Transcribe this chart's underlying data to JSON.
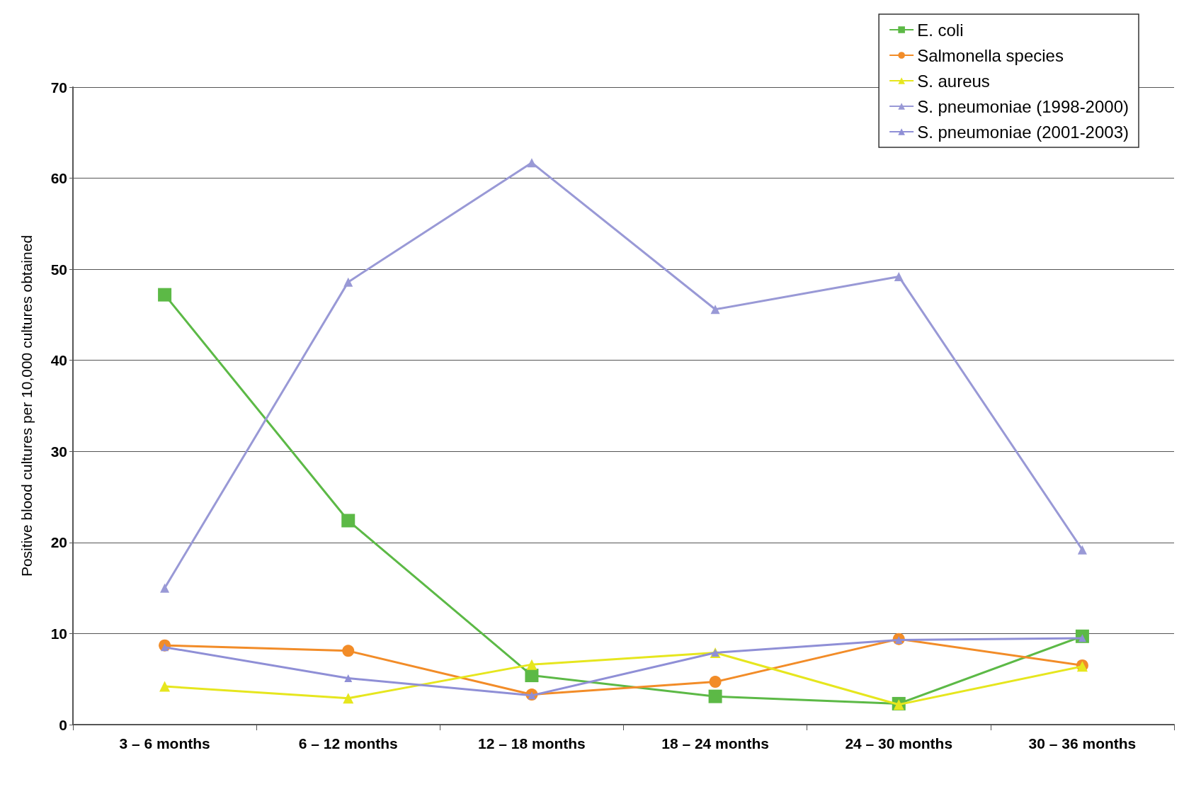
{
  "chart_data": {
    "type": "line",
    "ylabel": "Positive blood cultures per 10,000 cultures obtained",
    "categories": [
      "3 – 6 months",
      "6 – 12 months",
      "12 – 18 months",
      "18 – 24 months",
      "24 – 30 months",
      "30 – 36 months"
    ],
    "series": [
      {
        "name": "E. coli",
        "color": "#5cb946",
        "marker": "square",
        "values": [
          47.2,
          22.4,
          5.4,
          3.1,
          2.3,
          9.7
        ]
      },
      {
        "name": "Salmonella species",
        "color": "#f28c28",
        "marker": "circle",
        "values": [
          8.7,
          8.1,
          3.3,
          4.7,
          9.4,
          6.5
        ]
      },
      {
        "name": "S. aureus",
        "color": "#e6e61e",
        "marker": "triangle",
        "values": [
          4.2,
          2.9,
          6.6,
          7.9,
          2.2,
          6.4
        ]
      },
      {
        "name": "S. pneumoniae (1998-2000)",
        "color": "#9999d6",
        "marker": "triangle",
        "values": [
          15.0,
          48.6,
          61.7,
          45.6,
          49.2,
          19.2
        ]
      },
      {
        "name": "S. pneumoniae (2001-2003)",
        "color": "#8f8fd6",
        "marker": "triangle",
        "values": [
          8.5,
          5.1,
          3.2,
          7.9,
          9.3,
          9.5
        ]
      }
    ],
    "ylim": [
      0,
      70
    ],
    "yticks": [
      0,
      10,
      20,
      30,
      40,
      50,
      60,
      70
    ],
    "grid": "y",
    "legend": "top right"
  }
}
